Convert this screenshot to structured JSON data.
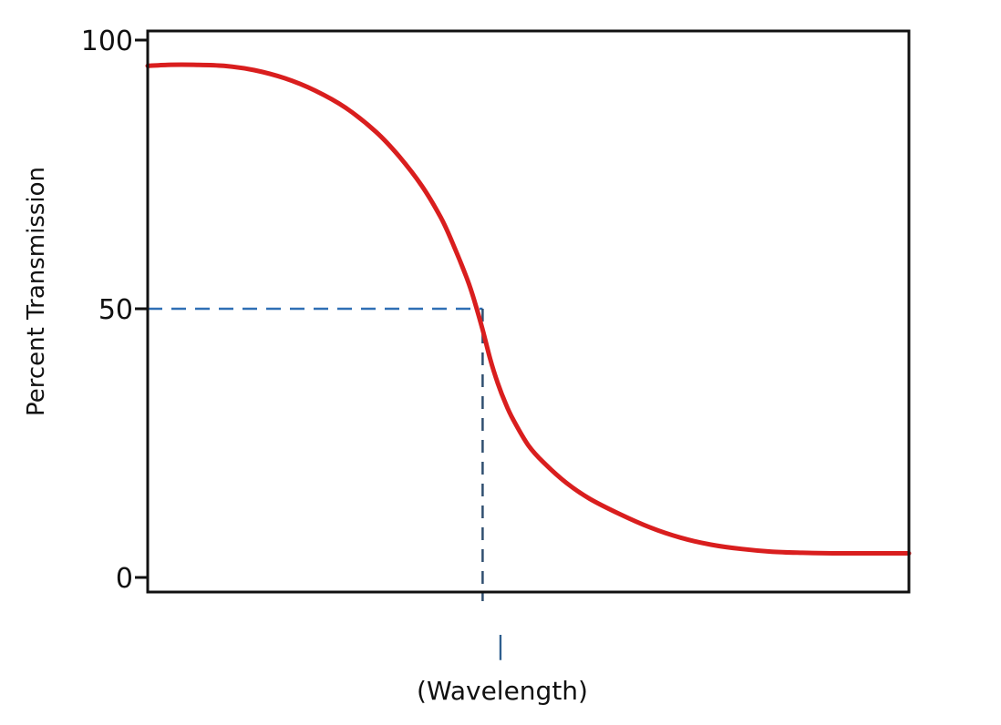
{
  "chart_data": {
    "type": "line",
    "title": "",
    "ylabel": "Percent Transmission",
    "xlabel": "(Wavelength)",
    "x_marker_label": "|",
    "ylim": [
      0,
      100
    ],
    "xlim": [
      0,
      100
    ],
    "yticks": [
      {
        "value": 0,
        "label": "0"
      },
      {
        "value": 50,
        "label": "50"
      },
      {
        "value": 100,
        "label": "100"
      }
    ],
    "grid": false,
    "legend": "none",
    "series": [
      {
        "color": "#d91e1e",
        "x": [
          0,
          3,
          6,
          10,
          14,
          18,
          22,
          26,
          30,
          33,
          36,
          38.5,
          40,
          42,
          43,
          44,
          45,
          46,
          47,
          48,
          50,
          52,
          55,
          58,
          62,
          66,
          70,
          74,
          78,
          82,
          86,
          90,
          94,
          97,
          100
        ],
        "y": [
          95.2,
          95.4,
          95.4,
          95.2,
          94.4,
          92.9,
          90.6,
          87.4,
          82.9,
          78.4,
          72.9,
          67.0,
          62.4,
          55.4,
          51.1,
          46.1,
          40.6,
          36.1,
          32.4,
          29.4,
          24.6,
          21.4,
          17.6,
          14.7,
          11.8,
          9.3,
          7.4,
          6.1,
          5.3,
          4.8,
          4.6,
          4.5,
          4.5,
          4.5,
          4.5
        ]
      }
    ],
    "reference": {
      "color": "#2f6fb5",
      "y": 50,
      "x": 44
    }
  }
}
